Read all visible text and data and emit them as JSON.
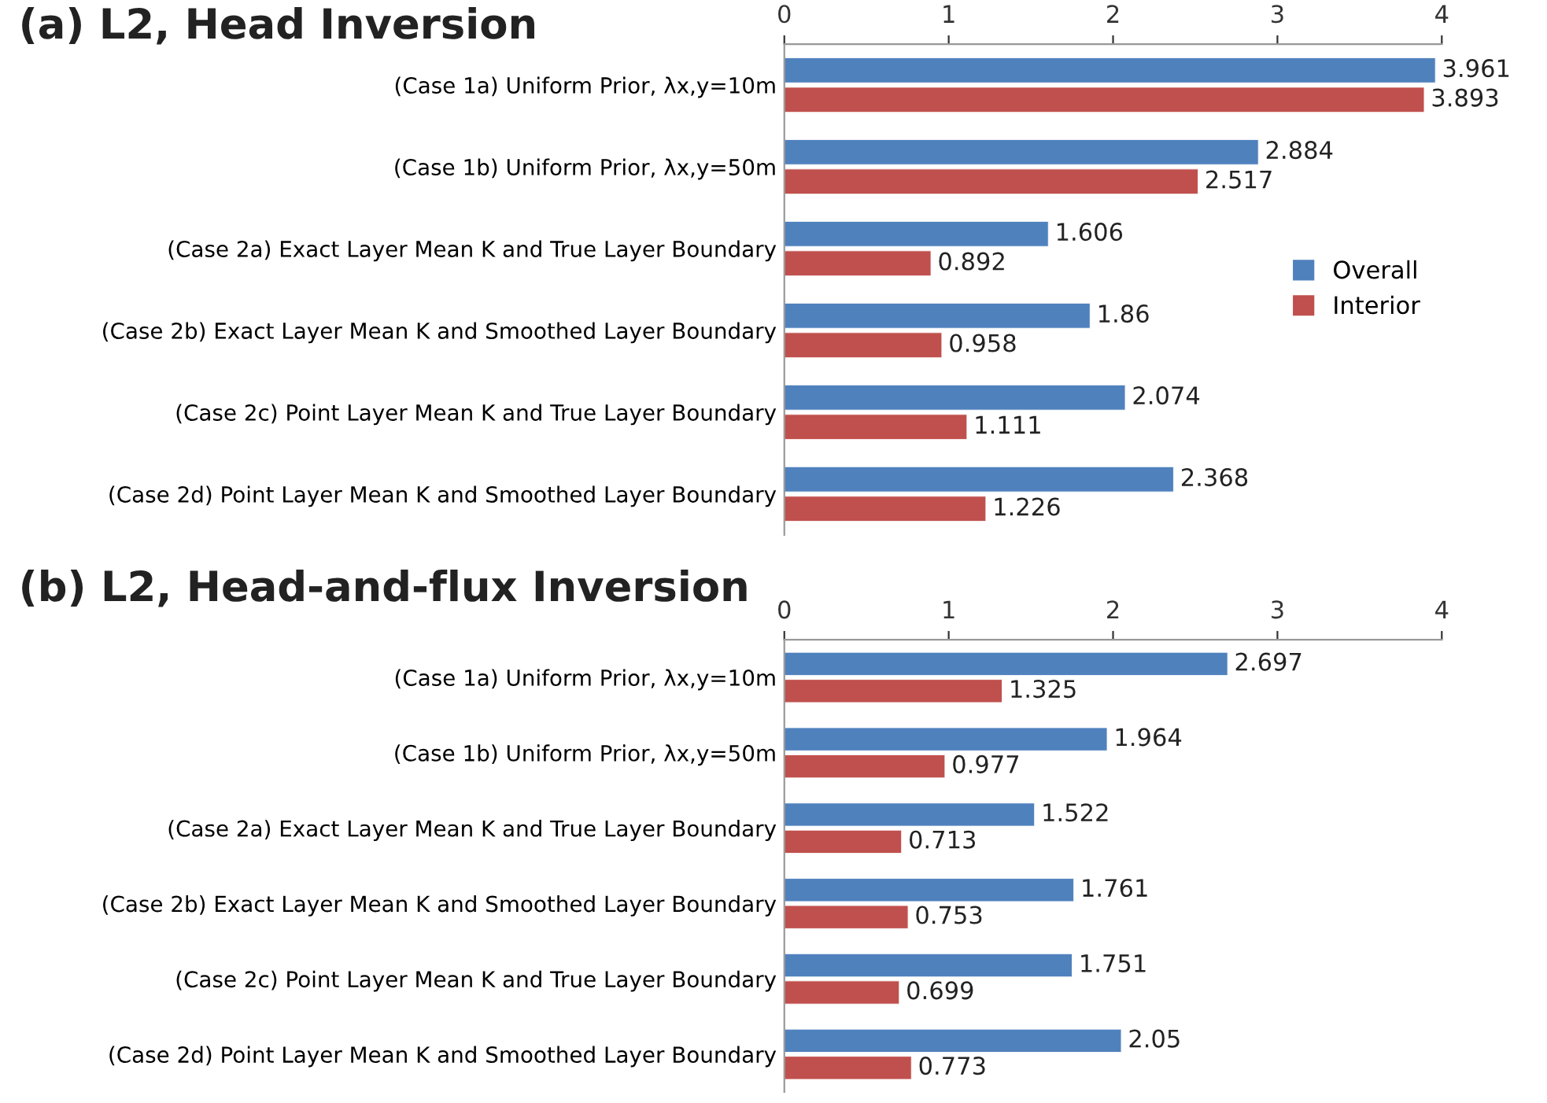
{
  "chart_data": [
    {
      "type": "bar",
      "title": "(a) L2, Head Inversion",
      "orientation": "horizontal",
      "categories": [
        "(Case 1a) Uniform Prior, λx,y=10m",
        "(Case 1b) Uniform Prior, λx,y=50m",
        "(Case 2a) Exact Layer Mean K and True Layer Boundary",
        "(Case 2b) Exact Layer Mean K and Smoothed Layer Boundary",
        "(Case 2c) Point Layer Mean K and True Layer Boundary",
        "(Case 2d) Point Layer Mean K and Smoothed Layer Boundary"
      ],
      "series": [
        {
          "name": "Overall",
          "color": "#4f81bd",
          "values": [
            3.961,
            2.884,
            1.606,
            1.86,
            2.074,
            2.368
          ]
        },
        {
          "name": "Interior",
          "color": "#c0504d",
          "values": [
            3.893,
            2.517,
            0.892,
            0.958,
            1.111,
            1.226
          ]
        }
      ],
      "xlim": [
        0,
        4
      ],
      "xticks": [
        0,
        1,
        2,
        3,
        4
      ],
      "data_labels": true,
      "legend": "right",
      "grid": false
    },
    {
      "type": "bar",
      "title": "(b) L2, Head-and-flux Inversion",
      "orientation": "horizontal",
      "categories": [
        "(Case 1a) Uniform Prior, λx,y=10m",
        "(Case 1b) Uniform Prior, λx,y=50m",
        "(Case 2a) Exact Layer Mean K and True Layer Boundary",
        "(Case 2b) Exact Layer Mean K and Smoothed Layer Boundary",
        "(Case 2c) Point Layer Mean K and True Layer Boundary",
        "(Case 2d) Point Layer Mean K and Smoothed Layer Boundary"
      ],
      "series": [
        {
          "color": "#4f81bd",
          "values": [
            2.697,
            1.964,
            1.522,
            1.761,
            1.751,
            2.05
          ]
        },
        {
          "color": "#c0504d",
          "values": [
            1.325,
            0.977,
            0.713,
            0.753,
            0.699,
            0.773
          ]
        }
      ],
      "xlim": [
        0,
        4
      ],
      "xticks": [
        0,
        1,
        2,
        3,
        4
      ],
      "data_labels": true,
      "legend": false,
      "grid": false
    }
  ]
}
